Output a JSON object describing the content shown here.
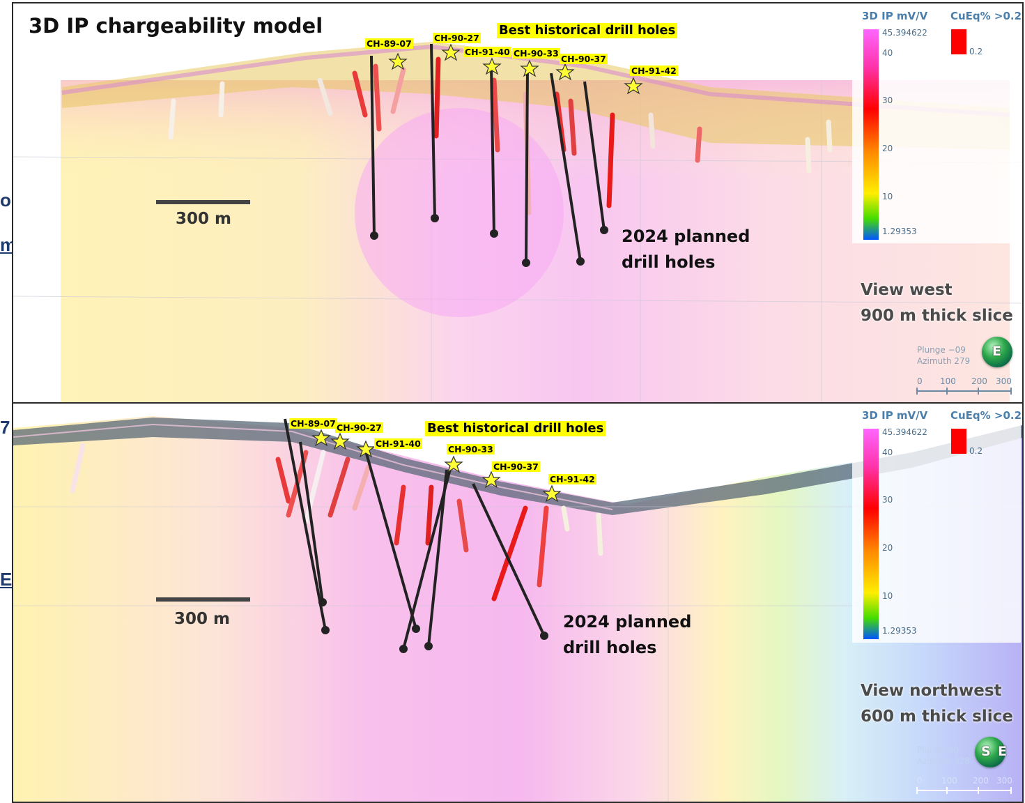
{
  "edge_fragments": [
    "o",
    "m",
    "7",
    "E"
  ],
  "panels": [
    {
      "title": "3D IP chargeability model",
      "callout": "Best historical drill holes",
      "holes": [
        "CH-89-07",
        "CH-90-27",
        "CH-91-40",
        "CH-90-33",
        "CH-90-37",
        "CH-91-42"
      ],
      "scale_bar": "300 m",
      "planned": {
        "line1": "2024 planned",
        "line2": "drill holes"
      },
      "view": {
        "line1": "View west",
        "line2": "900 m thick slice"
      },
      "legend": {
        "ip_title": "3D IP mV/V",
        "cu_title": "CuEq% >0.2",
        "ip_max": "45.394622",
        "ip_min": "1.29353",
        "ip_ticks": [
          "40",
          "30",
          "20",
          "10"
        ],
        "cu_value": "0.2"
      },
      "orientation": {
        "plunge": "Plunge −09",
        "azimuth": "Azimuth 279"
      },
      "compass_label": "E",
      "axis_ticks": [
        "0",
        "100",
        "200",
        "300"
      ]
    },
    {
      "title": "",
      "callout": "Best historical drill holes",
      "holes": [
        "CH-89-07",
        "CH-90-27",
        "CH-91-40",
        "CH-90-33",
        "CH-90-37",
        "CH-91-42"
      ],
      "scale_bar": "300 m",
      "planned": {
        "line1": "2024 planned",
        "line2": "drill holes"
      },
      "view": {
        "line1": "View northwest",
        "line2": "600 m thick slice"
      },
      "legend": {
        "ip_title": "3D IP mV/V",
        "cu_title": "CuEq% >0.2",
        "ip_max": "45.394622",
        "ip_min": "1.29353",
        "ip_ticks": [
          "40",
          "30",
          "20",
          "10"
        ],
        "cu_value": "0.2"
      },
      "orientation": {
        "plunge": "Plunge 00",
        "azimuth": "Azimuth 328"
      },
      "compass_label": "S",
      "compass_label_2": "E",
      "axis_ticks": [
        "0",
        "100",
        "200",
        "300"
      ]
    }
  ],
  "colors": {
    "ip_ramp": [
      "#ff66ff",
      "#ff3399",
      "#ff0000",
      "#ff8800",
      "#ffee00",
      "#44dd00",
      "#0055ff"
    ],
    "cu_marker": "#ff0000",
    "callout_bg": "#ffff00",
    "planned_hole": "#222222"
  }
}
